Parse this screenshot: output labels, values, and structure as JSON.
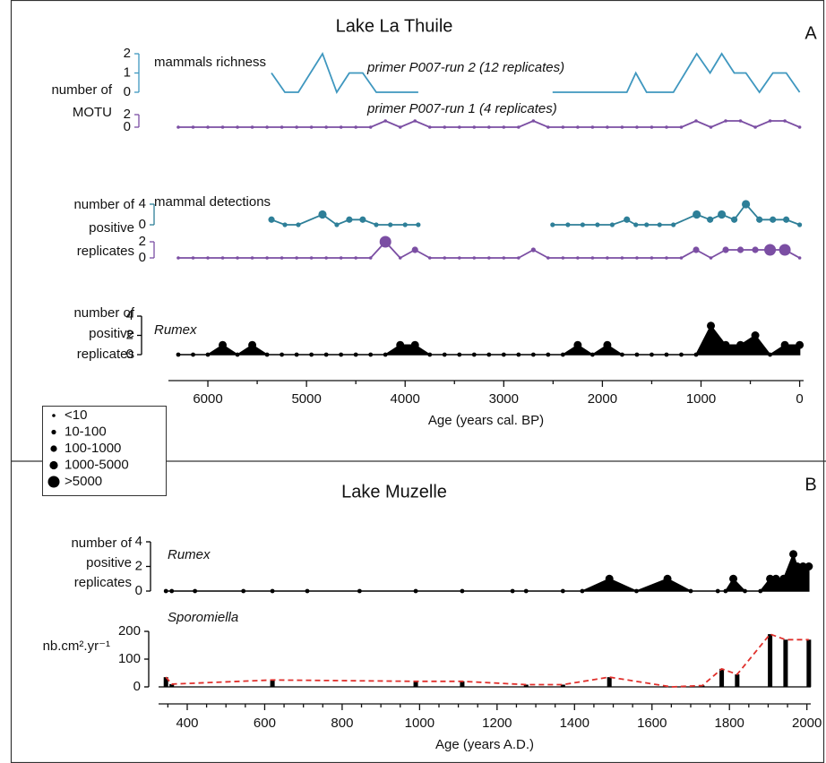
{
  "chart_data": [
    {
      "type": "line",
      "title": "Lake La Thuile",
      "letter": "A",
      "xlabel": "Age (years cal. BP)",
      "xlim": [
        6400,
        -40
      ],
      "xticks": [
        6000,
        5000,
        4000,
        3000,
        2000,
        1000,
        0
      ],
      "xminorticks": [
        5500,
        4500,
        3500,
        2500,
        1500,
        500
      ],
      "size_legend": [
        "<10",
        "10-100",
        "100-1000",
        "1000-5000",
        ">5000"
      ],
      "tracks": [
        {
          "type": "line",
          "ylabel": [
            "number of",
            "MOTU"
          ],
          "label": "mammals richness",
          "name": "primer P007-run 2 (12 replicates)",
          "color": "#3f97bf",
          "ylim": [
            0,
            2
          ],
          "yticks": [
            0,
            1,
            2
          ],
          "x": [
            5355,
            5219,
            5083,
            4838,
            4693,
            4566,
            4430,
            4293,
            4150,
            4000,
            3867,
            3200,
            2505,
            2350,
            2200,
            2050,
            1900,
            1752,
            1661,
            1552,
            1420,
            1280,
            1044,
            908,
            790,
            663,
            545,
            408,
            272,
            136,
            0
          ],
          "values": [
            1,
            0,
            0,
            2,
            0,
            1,
            1,
            0,
            0,
            0,
            0,
            null,
            0,
            0,
            0,
            0,
            0,
            0,
            1,
            0,
            0,
            0,
            2,
            1,
            2,
            1,
            1,
            0,
            1,
            1,
            0
          ]
        },
        {
          "type": "line",
          "markers": true,
          "name": "primer P007-run 1 (4 replicates)",
          "color": "#7b4ea3",
          "ylim": [
            0,
            2
          ],
          "yticks": [
            0,
            2
          ],
          "x": [
            6300,
            6150,
            6000,
            5850,
            5700,
            5550,
            5400,
            5250,
            5100,
            4950,
            4800,
            4650,
            4500,
            4350,
            4200,
            4050,
            3900,
            3750,
            3600,
            3450,
            3300,
            3150,
            3000,
            2850,
            2700,
            2550,
            2400,
            2250,
            2100,
            1950,
            1800,
            1650,
            1500,
            1350,
            1200,
            1050,
            900,
            750,
            600,
            450,
            300,
            150,
            0
          ],
          "values": [
            0,
            0,
            0,
            0,
            0,
            0,
            0,
            0,
            0,
            0,
            0,
            0,
            0,
            0,
            1,
            0,
            1,
            0,
            0,
            0,
            0,
            0,
            0,
            0,
            1,
            0,
            0,
            0,
            0,
            0,
            0,
            0,
            0,
            0,
            0,
            1,
            0,
            1,
            1,
            0,
            1,
            1,
            0
          ]
        },
        {
          "type": "line",
          "markers": true,
          "ylabel": [
            "number of",
            "positive",
            "replicates"
          ],
          "label": "mammal detections",
          "color": "#2e7f98",
          "ylim": [
            0,
            4
          ],
          "yticks": [
            0,
            4
          ],
          "x": [
            5355,
            5219,
            5083,
            4838,
            4693,
            4566,
            4430,
            4293,
            4150,
            4000,
            3867,
            3200,
            2505,
            2350,
            2200,
            2050,
            1900,
            1752,
            1661,
            1552,
            1420,
            1280,
            1044,
            908,
            790,
            663,
            545,
            408,
            272,
            136,
            0
          ],
          "values": [
            1,
            0,
            0,
            2,
            0,
            1,
            1,
            0,
            0,
            0,
            0,
            null,
            0,
            0,
            0,
            0,
            0,
            1,
            0,
            0,
            0,
            0,
            2,
            1,
            2,
            1,
            4,
            1,
            1,
            1,
            0
          ],
          "sizes": [
            2,
            1,
            1,
            3,
            1,
            2,
            2,
            1,
            1,
            1,
            1,
            null,
            1,
            1,
            1,
            1,
            1,
            2,
            1,
            1,
            1,
            1,
            3,
            2,
            3,
            2,
            3,
            2,
            2,
            2,
            1
          ]
        },
        {
          "type": "line",
          "markers": true,
          "color": "#7b4ea3",
          "ylim": [
            0,
            2
          ],
          "yticks": [
            0,
            2
          ],
          "x": [
            6300,
            6150,
            6000,
            5850,
            5700,
            5550,
            5400,
            5250,
            5100,
            4950,
            4800,
            4650,
            4500,
            4350,
            4200,
            4050,
            3900,
            3750,
            3600,
            3450,
            3300,
            3150,
            3000,
            2850,
            2700,
            2550,
            2400,
            2250,
            2100,
            1950,
            1800,
            1650,
            1500,
            1350,
            1200,
            1050,
            900,
            750,
            600,
            450,
            300,
            150,
            0
          ],
          "values": [
            0,
            0,
            0,
            0,
            0,
            0,
            0,
            0,
            0,
            0,
            0,
            0,
            0,
            0,
            2,
            0,
            1,
            0,
            0,
            0,
            0,
            0,
            0,
            0,
            1,
            0,
            0,
            0,
            0,
            0,
            0,
            0,
            0,
            0,
            0,
            1,
            0,
            1,
            1,
            1,
            1,
            1,
            0
          ],
          "sizes": [
            0,
            0,
            0,
            0,
            0,
            0,
            0,
            0,
            0,
            0,
            0,
            0,
            0,
            0,
            4,
            0,
            2,
            0,
            0,
            0,
            0,
            0,
            0,
            0,
            1,
            0,
            0,
            0,
            0,
            0,
            0,
            0,
            0,
            0,
            0,
            2,
            0,
            2,
            2,
            2,
            4,
            4,
            0
          ]
        },
        {
          "type": "area",
          "markers": true,
          "ylabel": [
            "number of",
            "positive",
            "replicates"
          ],
          "label": "Rumex",
          "italic": true,
          "color": "#000000",
          "ylim": [
            0,
            4
          ],
          "yticks": [
            0,
            2,
            4
          ],
          "x": [
            6300,
            6150,
            6000,
            5850,
            5700,
            5550,
            5400,
            5250,
            5100,
            4950,
            4800,
            4650,
            4500,
            4350,
            4200,
            4050,
            3900,
            3750,
            3600,
            3450,
            3300,
            3150,
            3000,
            2850,
            2700,
            2550,
            2400,
            2250,
            2100,
            1950,
            1800,
            1650,
            1500,
            1350,
            1200,
            1050,
            900,
            750,
            600,
            450,
            300,
            150,
            0
          ],
          "values": [
            0,
            0,
            0,
            1,
            0,
            1,
            0,
            0,
            0,
            0,
            0,
            0,
            0,
            0,
            0,
            1,
            1,
            0,
            0,
            0,
            0,
            0,
            0,
            0,
            0,
            0,
            0,
            1,
            0,
            1,
            0,
            0,
            0,
            0,
            0,
            0,
            3,
            1,
            1,
            2,
            0,
            1,
            1
          ]
        }
      ]
    },
    {
      "type": "line",
      "title": "Lake Muzelle",
      "letter": "B",
      "xlabel": "Age (years A.D.)",
      "xlim": [
        326,
        2010
      ],
      "xticks": [
        400,
        600,
        800,
        1000,
        1200,
        1400,
        1600,
        1800,
        2000
      ],
      "xminorticks": [
        350,
        450,
        500,
        550,
        650,
        700,
        750,
        850,
        900,
        950,
        1050,
        1100,
        1150,
        1250,
        1300,
        1350,
        1450,
        1500,
        1550,
        1650,
        1700,
        1750,
        1850,
        1900,
        1950
      ],
      "tracks": [
        {
          "type": "area",
          "markers": true,
          "ylabel": [
            "number of",
            "positive",
            "replicates"
          ],
          "label": "Rumex",
          "italic": true,
          "color": "#000000",
          "ylim": [
            0,
            4
          ],
          "yticks": [
            0,
            2,
            4
          ],
          "x": [
            345,
            360,
            420,
            545,
            620,
            710,
            845,
            990,
            1110,
            1240,
            1275,
            1370,
            1420,
            1490,
            1560,
            1640,
            1700,
            1770,
            1790,
            1810,
            1840,
            1880,
            1905,
            1920,
            1940,
            1965,
            1975,
            1990,
            2005
          ],
          "values": [
            0,
            0,
            0,
            0,
            0,
            0,
            0,
            0,
            0,
            0,
            0,
            0,
            0,
            1,
            0,
            1,
            0,
            0,
            0,
            1,
            0,
            0,
            1,
            1,
            1,
            3,
            2,
            2,
            2
          ]
        },
        {
          "type": "bar",
          "ylabel": [
            "nb.cm².yr⁻¹"
          ],
          "label": "Sporomiella",
          "italic": true,
          "color": "#000000",
          "line_color": "#e0302c",
          "line_style": "dashed",
          "ylim": [
            0,
            200
          ],
          "yticks": [
            0,
            100,
            200
          ],
          "x": [
            345,
            360,
            620,
            990,
            1110,
            1275,
            1370,
            1490,
            1650,
            1730,
            1780,
            1820,
            1905,
            1945,
            2005
          ],
          "values": [
            35,
            10,
            25,
            20,
            20,
            8,
            8,
            35,
            0,
            5,
            65,
            45,
            190,
            170,
            170
          ]
        }
      ]
    }
  ]
}
